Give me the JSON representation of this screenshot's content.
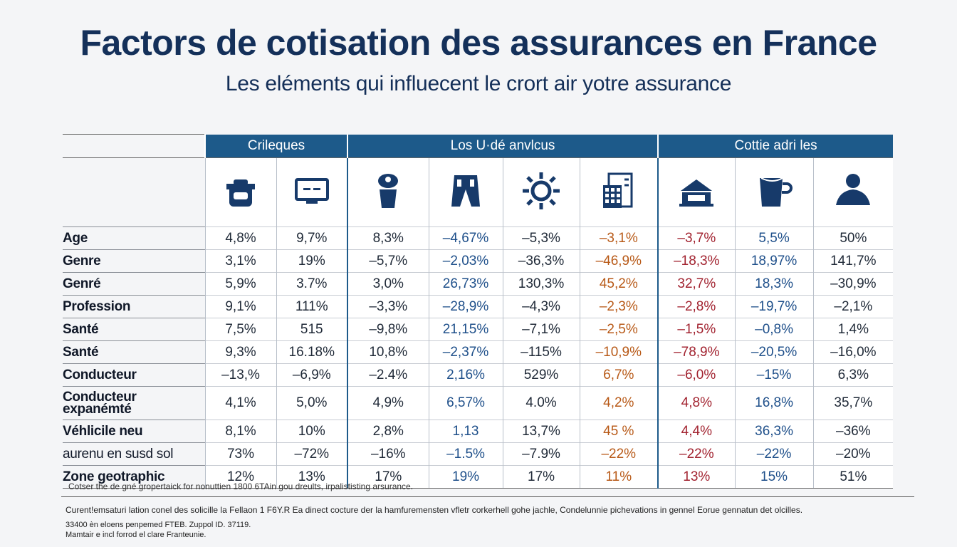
{
  "title": "Factors de cotisation des assurances en France",
  "subtitle": "Les eléments qui influecent le crort air yotre assurance",
  "groups": [
    "Crileques",
    "Los U·dé anvlcus",
    "Cottie adri les"
  ],
  "icons": [
    "helmet-icon",
    "monitor-icon",
    "person-icon",
    "jeans-icon",
    "sun-icon",
    "calculator-icon",
    "house-icon",
    "mug-icon",
    "user-icon"
  ],
  "rows": [
    {
      "label": "Age",
      "values": [
        "4,8%",
        "9,7%",
        "8,3%",
        "–4,67%",
        "–5,3%",
        "–3,1%",
        "–3,7%",
        "5,5%",
        "50%"
      ]
    },
    {
      "label": "Genre",
      "values": [
        "3,1%",
        "19%",
        "–5,7%",
        "–2,03%",
        "–36,3%",
        "–46,9%",
        "–18,3%",
        "18,97%",
        "141,7%"
      ]
    },
    {
      "label": "Genré",
      "values": [
        "5,9%",
        "3.7%",
        "3,0%",
        "26,73%",
        "130,3%",
        "45,2%",
        "32,7%",
        "18,3%",
        "–30,9%"
      ]
    },
    {
      "label": "Profession",
      "values": [
        "9,1%",
        "111%",
        "–3,3%",
        "–28,9%",
        "–4,3%",
        "–2,3%",
        "–2,8%",
        "–19,7%",
        "–2,1%"
      ]
    },
    {
      "label": "Santé",
      "values": [
        "7,5%",
        "515",
        "–9,8%",
        "21,15%",
        "–7,1%",
        "–2,5%",
        "–1,5%",
        "–0,8%",
        "1,4%"
      ]
    },
    {
      "label": "Santé",
      "values": [
        "9,3%",
        "16.18%",
        "10,8%",
        "–2,37%",
        "–115%",
        "–10,9%",
        "–78,9%",
        "–20,5%",
        "–16,0%"
      ]
    },
    {
      "label": "Conducteur",
      "values": [
        "–13,%",
        "–6,9%",
        "–2.4%",
        "2,16%",
        "529%",
        "6,7%",
        "–6,0%",
        "–15%",
        "6,3%"
      ]
    },
    {
      "label": "Conducteur expanémté",
      "values": [
        "4,1%",
        "5,0%",
        "4,9%",
        "6,57%",
        "4.0%",
        "4,2%",
        "4,8%",
        "16,8%",
        "35,7%"
      ]
    },
    {
      "label": "Véhlicile neu",
      "values": [
        "8,1%",
        "10%",
        "2,8%",
        "1,13",
        "13,7%",
        "45 %",
        "4,4%",
        "36,3%",
        "–36%"
      ]
    },
    {
      "label": "aurenu en susd sol",
      "values": [
        "73%",
        "–72%",
        "–16%",
        "–1.5%",
        "–7.9%",
        "–22%",
        "–22%",
        "–22%",
        "–20%"
      ]
    },
    {
      "label": "Zone geotraphic",
      "values": [
        "12%",
        "13%",
        "17%",
        "19%",
        "17%",
        "11%",
        "13%",
        "15%",
        "51%"
      ]
    }
  ],
  "note": "Cotser the de gné gropertaick for nonuttien 1800 6TAin gou dreults, irpalististing arsurance.",
  "footer": {
    "line1": "Curent!emsaturi lation conel des solicille la Fellaon 1 F6Y.R Ea dinect cocture der la hamfuremensten vfletr corkerhell gohe jachle, Condelunnie pichevations in gennel Eorue gennatun det olcilles.",
    "line2": "33400 èn eloens penpemed FTEB. Zuppol ID. 37119.",
    "line3": "Mamtair e incl forrod el clare Franteunie."
  },
  "colors": {
    "header": "#1d5a8a",
    "title": "#14305a",
    "blue": "#1e4f8a",
    "orange": "#b85a18",
    "red": "#a22330"
  }
}
